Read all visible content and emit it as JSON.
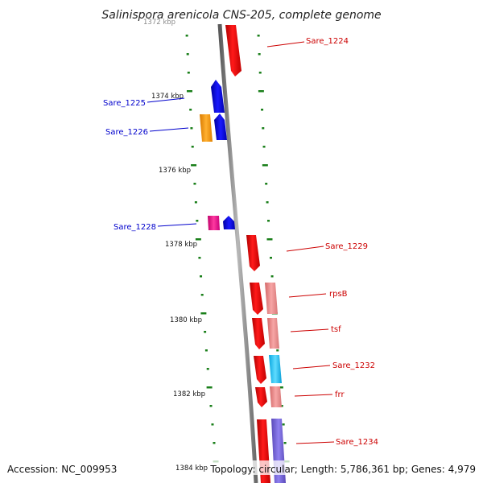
{
  "title": "Salinispora arenicola CNS-205, complete genome",
  "footer": {
    "accession": "Accession: NC_009953",
    "info": "Topology: circular; Length: 5,786,361 bp; Genes: 4,979"
  },
  "colors": {
    "forward_gene": "#ff0000",
    "reverse_gene": "#0000ff",
    "tick": "#1a7f1a",
    "backbone": "#8c8c8c"
  },
  "kbp_labels": [
    "1372 kbp",
    "1374 kbp",
    "1376 kbp",
    "1378 kbp",
    "1380 kbp",
    "1382 kbp",
    "1384 kbp"
  ],
  "gene_labels": {
    "left": [
      "Sare_1225",
      "Sare_1226",
      "Sare_1228"
    ],
    "right": [
      "Sare_1224",
      "Sare_1229",
      "rpsB",
      "tsf",
      "Sare_1232",
      "frr",
      "Sare_1234"
    ]
  }
}
